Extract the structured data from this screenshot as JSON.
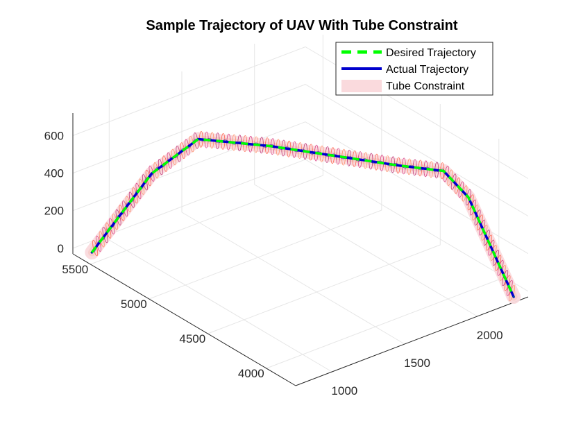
{
  "chart_data": {
    "type": "line3d",
    "title": "Sample Trajectory of UAV With Tube Constraint",
    "xlabel": "",
    "ylabel": "",
    "zlabel": "",
    "x_ticks": [
      1000,
      1500,
      2000
    ],
    "y_ticks": [
      4000,
      4500,
      5000,
      5500
    ],
    "z_ticks": [
      0,
      200,
      400,
      600
    ],
    "xlim": [
      750,
      2350
    ],
    "ylim": [
      3750,
      5650
    ],
    "zlim": [
      -30,
      720
    ],
    "grid": true,
    "legend_position": "top-right",
    "series": [
      {
        "name": "Desired Trajectory",
        "style": "dashed",
        "color": "#00ff00"
      },
      {
        "name": "Actual Trajectory",
        "style": "solid",
        "color": "#0000cd"
      },
      {
        "name": "Tube Constraint",
        "style": "patch",
        "color": "#fadadd"
      }
    ],
    "waypoints": [
      {
        "x": 800,
        "y": 5550,
        "z": 0
      },
      {
        "x": 1050,
        "y": 5350,
        "z": 420
      },
      {
        "x": 1250,
        "y": 5200,
        "z": 600
      },
      {
        "x": 1500,
        "y": 4900,
        "z": 600
      },
      {
        "x": 1900,
        "y": 4300,
        "z": 600
      },
      {
        "x": 2050,
        "y": 4100,
        "z": 600
      },
      {
        "x": 2100,
        "y": 3950,
        "z": 500
      },
      {
        "x": 2250,
        "y": 3750,
        "z": 0
      }
    ],
    "tube_radius": 40,
    "oscillation_amplitude": 20
  }
}
